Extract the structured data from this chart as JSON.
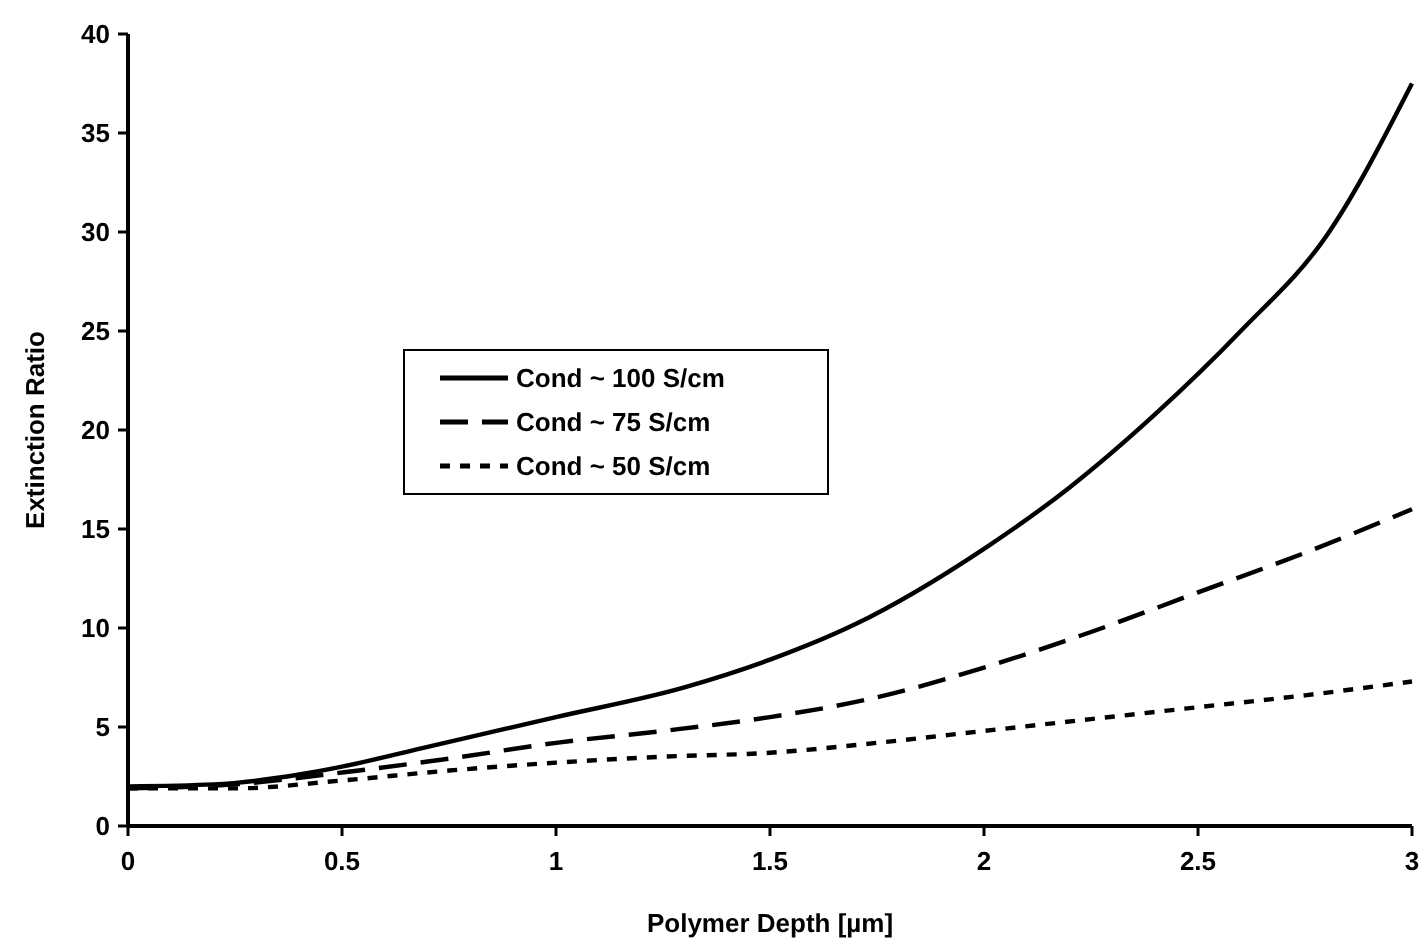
{
  "chart_data": {
    "type": "line",
    "xlabel": "Polymer Depth [µm]",
    "ylabel": "Extinction Ratio",
    "xlim": [
      0,
      3
    ],
    "xticks": [
      0,
      0.5,
      1,
      1.5,
      2,
      2.5,
      3
    ],
    "ylim": [
      0,
      40
    ],
    "yticks": [
      0,
      5,
      10,
      15,
      20,
      25,
      30,
      35,
      40
    ],
    "grid": false,
    "legend": "center left",
    "marker": "none",
    "series": [
      {
        "name": "Cond ~ 100 S/cm",
        "color": "#000000",
        "line_style": "solid",
        "x": [
          0,
          0.2,
          0.4,
          0.5,
          0.7,
          1,
          1.3,
          1.5,
          1.7,
          2,
          2.2,
          2.4,
          2.6,
          2.8,
          3
        ],
        "values": [
          2,
          2.1,
          2.6,
          3,
          4,
          5.5,
          7,
          8.4,
          10.2,
          14,
          17.1,
          20.8,
          25,
          29.8,
          37.5
        ]
      },
      {
        "name": "Cond ~ 75 S/cm",
        "color": "#000000",
        "line_style": "dashed",
        "x": [
          0,
          0.25,
          0.5,
          0.75,
          1,
          1.25,
          1.5,
          1.75,
          2,
          2.25,
          2.5,
          2.75,
          3
        ],
        "values": [
          1.9,
          2.1,
          2.7,
          3.4,
          4.2,
          4.8,
          5.5,
          6.5,
          8,
          9.8,
          11.8,
          13.8,
          16
        ]
      },
      {
        "name": "Cond ~ 50 S/cm",
        "color": "#000000",
        "line_style": "dotted",
        "x": [
          0,
          0.25,
          0.5,
          0.75,
          1,
          1.25,
          1.5,
          1.75,
          2,
          2.25,
          2.5,
          2.75,
          3
        ],
        "values": [
          1.9,
          1.9,
          2.3,
          2.8,
          3.2,
          3.5,
          3.7,
          4.2,
          4.8,
          5.4,
          6,
          6.6,
          7.3
        ]
      }
    ]
  }
}
